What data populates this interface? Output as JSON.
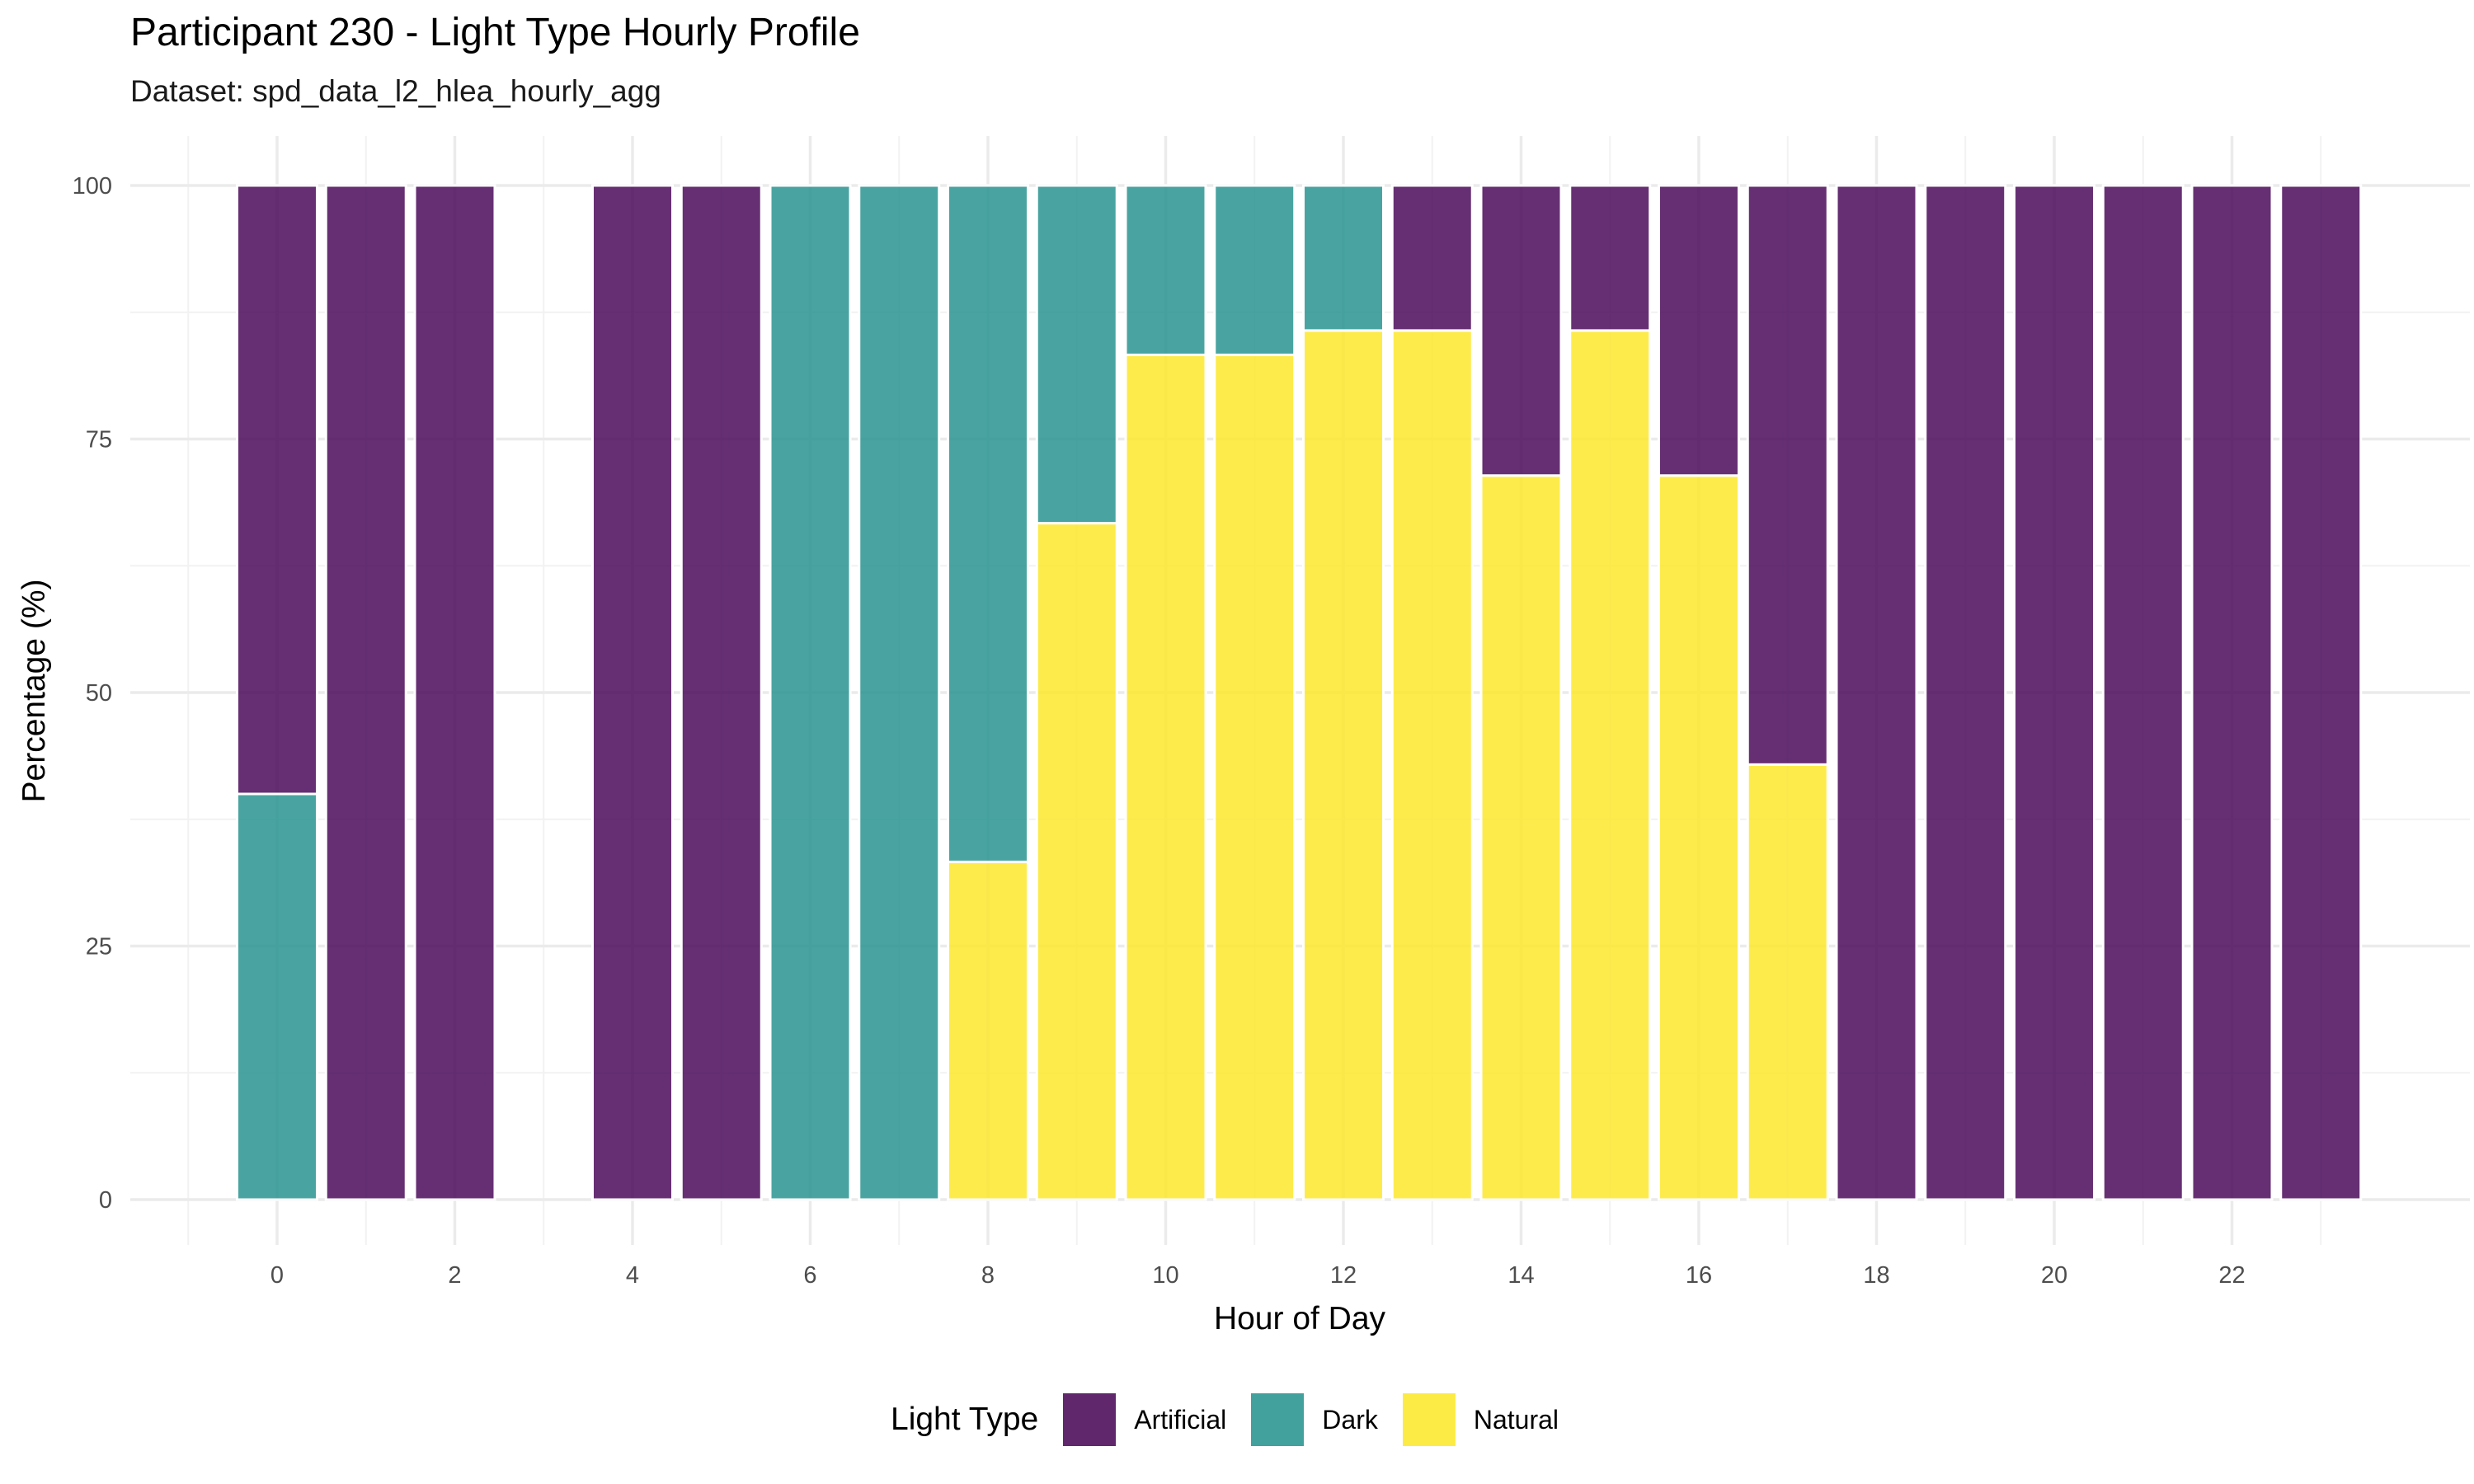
{
  "chart_data": {
    "type": "bar",
    "stacked": true,
    "title": "Participant 230 - Light Type Hourly Profile",
    "subtitle": "Dataset: spd_data_l2_hlea_hourly_agg",
    "xlabel": "Hour of Day",
    "ylabel": "Percentage (%)",
    "x_ticks": [
      "0",
      "2",
      "4",
      "6",
      "8",
      "10",
      "12",
      "14",
      "16",
      "18",
      "20",
      "22"
    ],
    "y_ticks": [
      "0",
      "25",
      "50",
      "75",
      "100"
    ],
    "ylim": [
      0,
      100
    ],
    "xlim": [
      -1,
      24
    ],
    "grid": true,
    "legend_title": "Light Type",
    "legend_position": "bottom",
    "stack_order": [
      "Natural",
      "Dark",
      "Artificial"
    ],
    "hours": [
      0,
      1,
      2,
      4,
      5,
      6,
      7,
      8,
      9,
      10,
      11,
      12,
      13,
      14,
      15,
      16,
      17,
      18,
      19,
      20,
      21,
      22,
      23
    ],
    "series": [
      {
        "name": "Artificial",
        "color": "#440154",
        "values": [
          60,
          100,
          100,
          100,
          100,
          0,
          0,
          0,
          0,
          0,
          0,
          0,
          14.3,
          28.6,
          14.3,
          28.6,
          57.1,
          100,
          100,
          100,
          100,
          100,
          100
        ]
      },
      {
        "name": "Dark",
        "color": "#21908C",
        "values": [
          40,
          0,
          0,
          0,
          0,
          100,
          100,
          66.7,
          33.3,
          16.7,
          16.7,
          14.3,
          0,
          0,
          0,
          0,
          0,
          0,
          0,
          0,
          0,
          0,
          0
        ]
      },
      {
        "name": "Natural",
        "color": "#FDE725",
        "values": [
          0,
          0,
          0,
          0,
          0,
          0,
          0,
          33.3,
          66.7,
          83.3,
          83.3,
          85.7,
          85.7,
          71.4,
          85.7,
          71.4,
          42.9,
          0,
          0,
          0,
          0,
          0,
          0
        ]
      }
    ]
  }
}
